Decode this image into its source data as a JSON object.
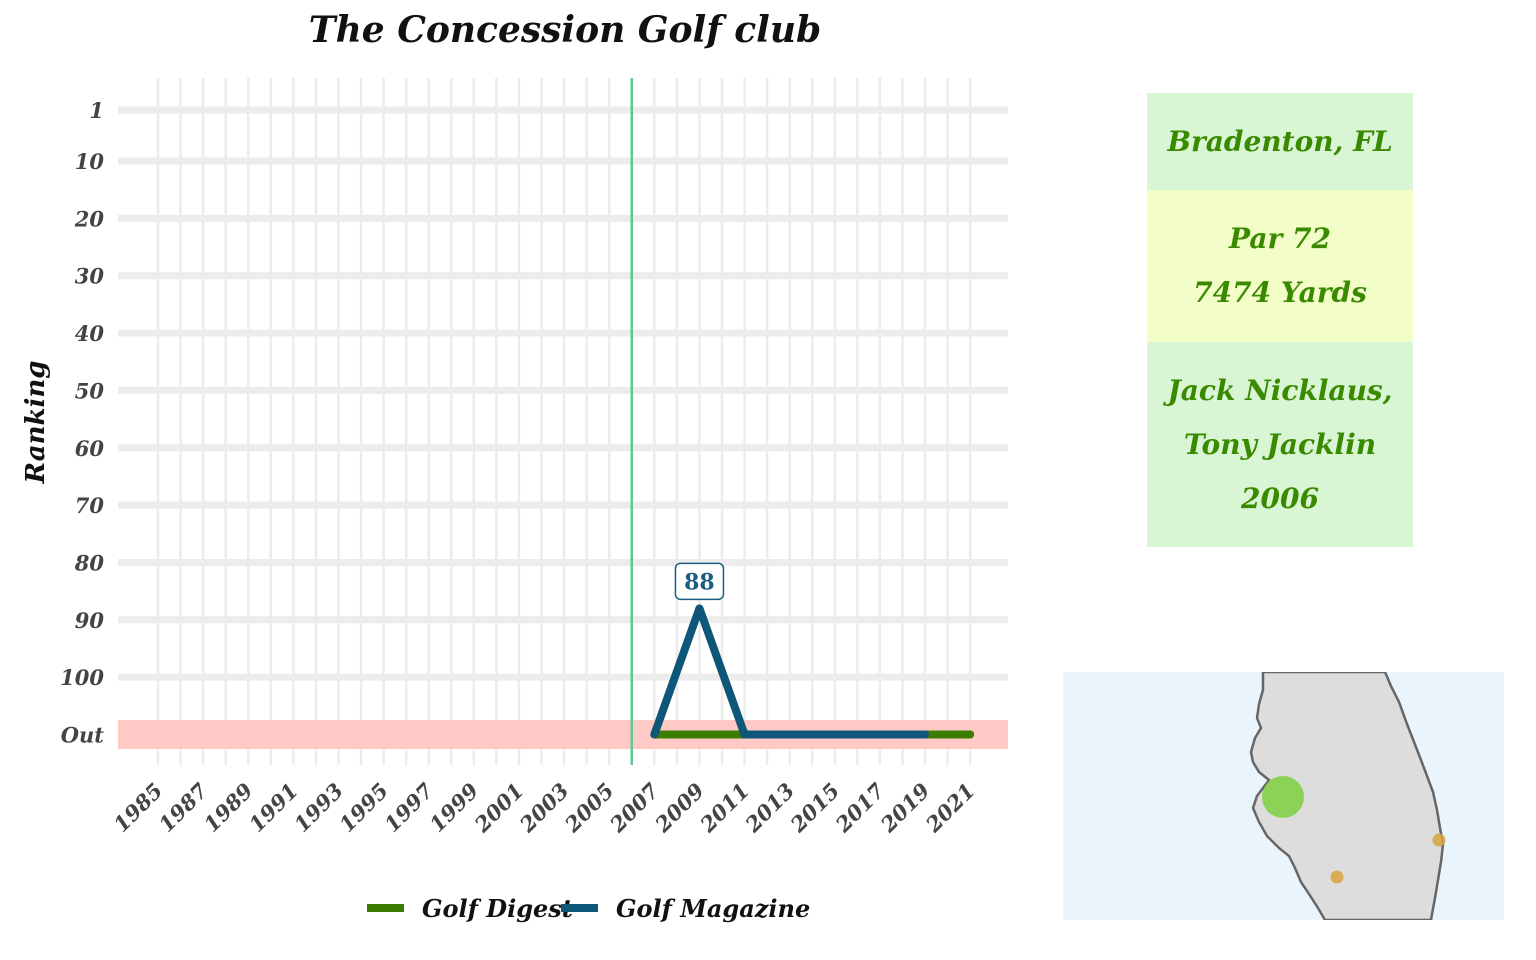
{
  "chart_data": {
    "type": "line",
    "title": "The Concession Golf club",
    "ylabel": "Ranking",
    "xlabel": "",
    "x_ticks": [
      "1985",
      "1987",
      "1989",
      "1991",
      "1993",
      "1995",
      "1997",
      "1999",
      "2001",
      "2003",
      "2005",
      "2007",
      "2009",
      "2011",
      "2013",
      "2015",
      "2017",
      "2019",
      "2021"
    ],
    "y_ticks": [
      "1",
      "10",
      "20",
      "30",
      "40",
      "50",
      "60",
      "70",
      "80",
      "90",
      "100",
      "Out"
    ],
    "y_reversed": true,
    "out_band_label": "Out",
    "vline_year": 2006,
    "series": [
      {
        "name": "Golf Digest",
        "color": "#3a7d00",
        "x": [
          2007,
          2009,
          2011,
          2013,
          2015,
          2017,
          2019,
          2021
        ],
        "y": [
          "Out",
          "Out",
          "Out",
          "Out",
          "Out",
          "Out",
          "Out",
          "Out"
        ]
      },
      {
        "name": "Golf Magazine",
        "color": "#0e5779",
        "x": [
          2007,
          2009,
          2011,
          2013,
          2015,
          2017,
          2019
        ],
        "y": [
          "Out",
          88,
          "Out",
          "Out",
          "Out",
          "Out",
          "Out"
        ]
      }
    ],
    "annotations": [
      {
        "series": "Golf Magazine",
        "x": 2009,
        "y": 88,
        "text": "88"
      }
    ],
    "legend_position": "bottom",
    "grid": true
  },
  "info": {
    "location": "Bradenton, FL",
    "par": "Par 72",
    "yards": "7474 Yards",
    "architects_1": "Jack Nicklaus,",
    "architects_2": "Tony Jacklin",
    "year_opened": "2006"
  },
  "map": {
    "region": "Florida",
    "highlight_color": "#7ed03f",
    "other_color": "#d8a440",
    "water_color": "#eaf4fc",
    "land_color": "#dddddd"
  }
}
